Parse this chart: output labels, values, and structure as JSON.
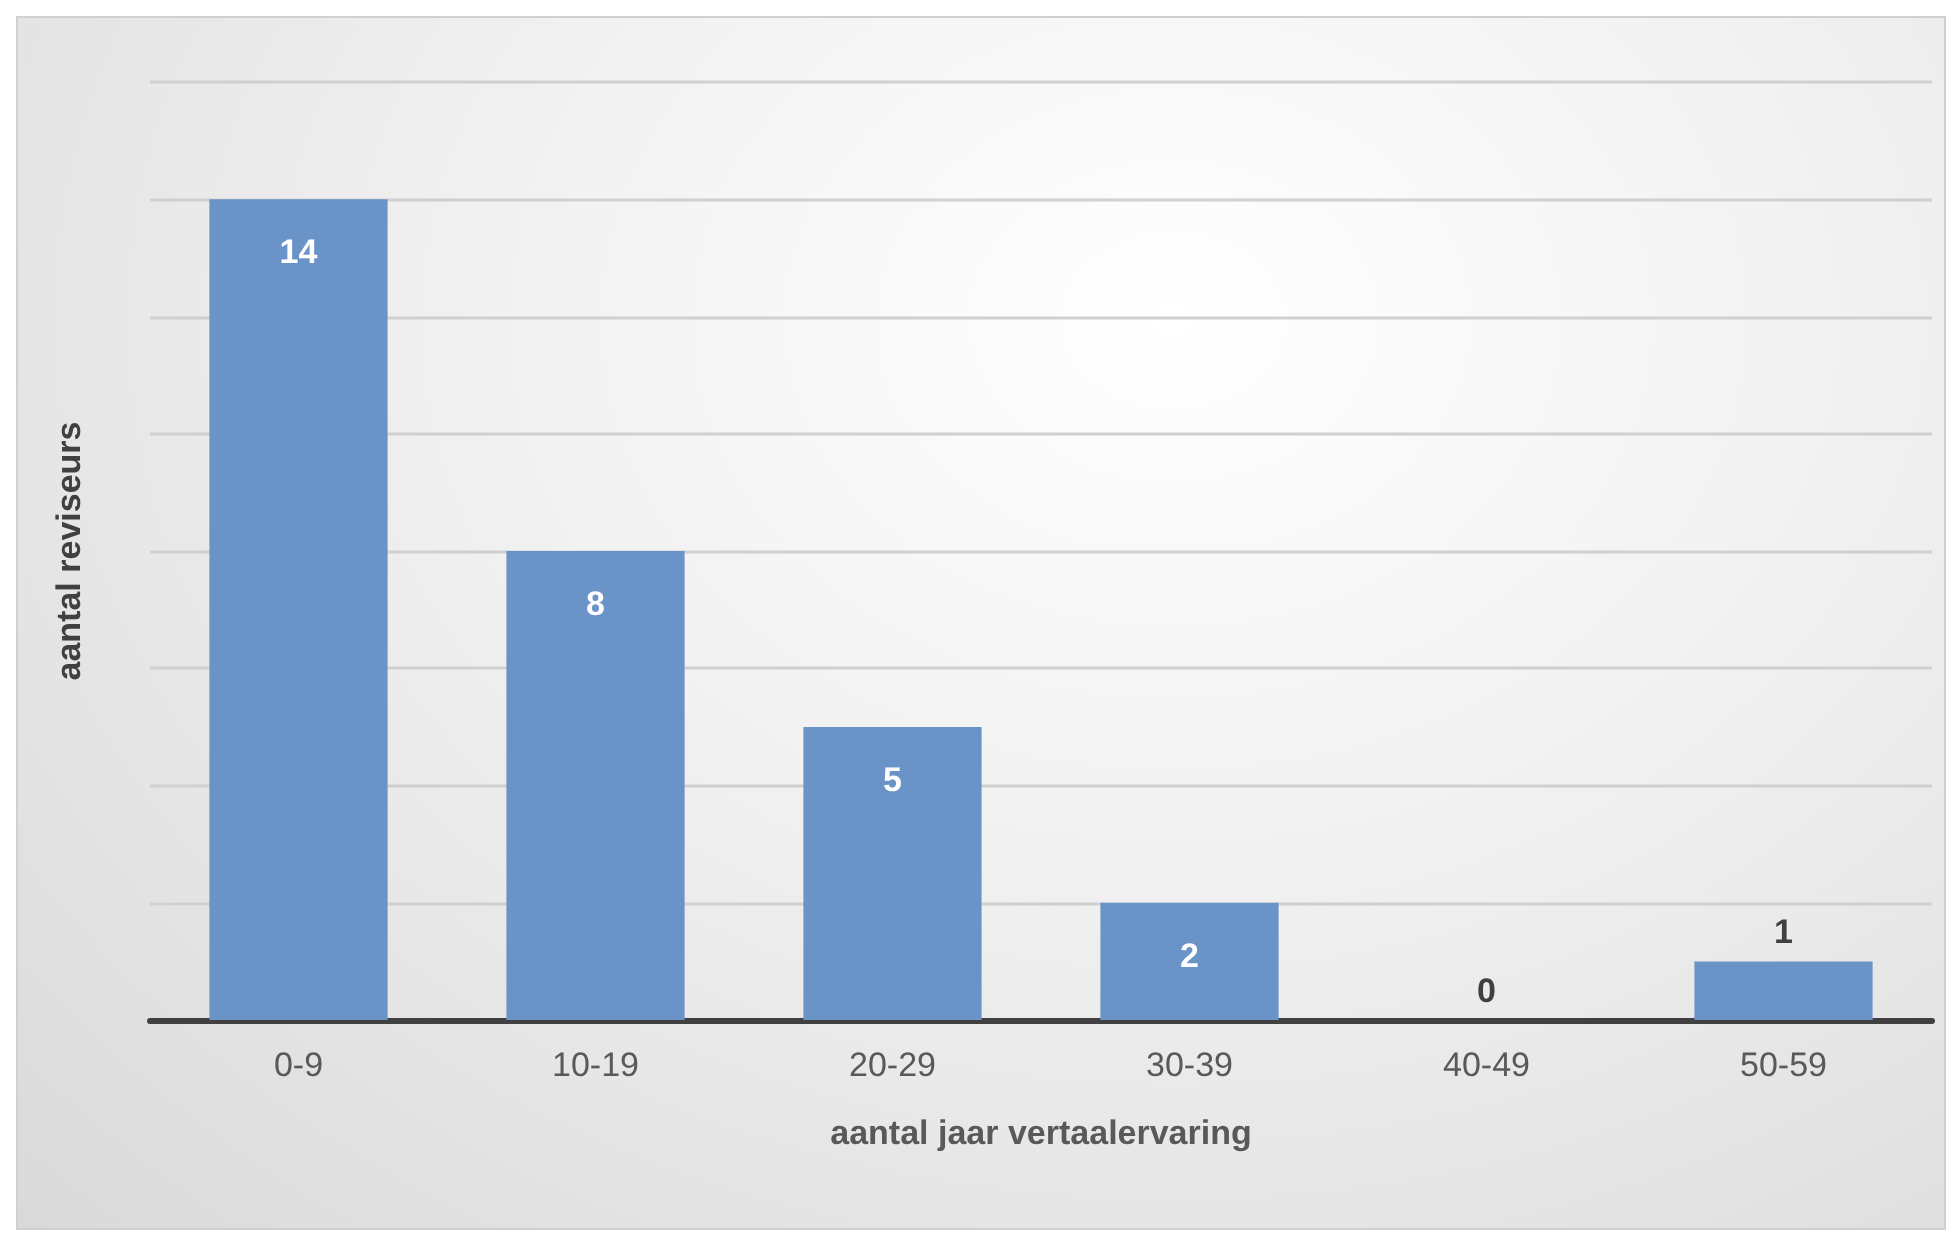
{
  "chart_data": {
    "type": "bar",
    "xlabel": "aantal jaar vertaalervaring",
    "ylabel": "aantal reviseurs",
    "categories": [
      "0-9",
      "10-19",
      "20-29",
      "30-39",
      "40-49",
      "50-59"
    ],
    "values": [
      14,
      8,
      5,
      2,
      0,
      1
    ],
    "color": "#6a93c8",
    "ylim": [
      0,
      16
    ],
    "yticks": [
      {
        "value": 0,
        "label": null
      },
      {
        "value": 2,
        "label": null
      },
      {
        "value": 4,
        "label": null
      },
      {
        "value": 6,
        "label": null
      },
      {
        "value": 8,
        "label": null
      },
      {
        "value": 10,
        "label": null
      },
      {
        "value": 12,
        "label": null
      },
      {
        "value": 14,
        "label": null
      },
      {
        "value": 16,
        "label": null
      }
    ],
    "grid": "y",
    "tick_labels": "x",
    "data_labels": true
  }
}
